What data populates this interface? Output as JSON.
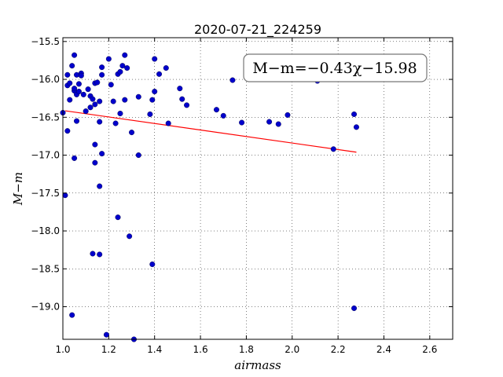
{
  "chart_data": {
    "type": "scatter",
    "title": "2020-07-21_224259",
    "xlabel": "airmass",
    "ylabel": "M−m",
    "xlim": [
      1.0,
      2.7
    ],
    "ylim": [
      -15.45,
      -19.43
    ],
    "y_inverted": true,
    "grid": true,
    "xticks": [
      "1.0",
      "1.2",
      "1.4",
      "1.6",
      "1.8",
      "2.0",
      "2.2",
      "2.4",
      "2.6"
    ],
    "yticks": [
      "−15.5",
      "−16.0",
      "−16.5",
      "−17.0",
      "−17.5",
      "−18.0",
      "−18.5",
      "−19.0"
    ],
    "annotation": "M−m=−0.43χ−15.98",
    "marker_color": "#0000cc",
    "line_color": "#ff0000",
    "fit": {
      "slope": -0.43,
      "intercept": -15.98,
      "x_range": [
        1.01,
        2.28
      ]
    },
    "points": [
      [
        1.0,
        -16.44
      ],
      [
        1.01,
        -17.53
      ],
      [
        1.02,
        -16.08
      ],
      [
        1.02,
        -15.94
      ],
      [
        1.02,
        -16.68
      ],
      [
        1.03,
        -16.05
      ],
      [
        1.03,
        -16.27
      ],
      [
        1.04,
        -15.82
      ],
      [
        1.05,
        -16.15
      ],
      [
        1.05,
        -16.12
      ],
      [
        1.05,
        -15.68
      ],
      [
        1.06,
        -15.94
      ],
      [
        1.06,
        -16.2
      ],
      [
        1.06,
        -16.55
      ],
      [
        1.07,
        -16.16
      ],
      [
        1.07,
        -16.06
      ],
      [
        1.08,
        -15.92
      ],
      [
        1.08,
        -15.95
      ],
      [
        1.09,
        -16.2
      ],
      [
        1.1,
        -16.42
      ],
      [
        1.11,
        -16.13
      ],
      [
        1.12,
        -16.22
      ],
      [
        1.12,
        -16.37
      ],
      [
        1.13,
        -16.26
      ],
      [
        1.14,
        -16.33
      ],
      [
        1.14,
        -16.05
      ],
      [
        1.15,
        -16.04
      ],
      [
        1.16,
        -16.56
      ],
      [
        1.16,
        -16.29
      ],
      [
        1.17,
        -15.94
      ],
      [
        1.17,
        -15.84
      ],
      [
        1.17,
        -16.98
      ],
      [
        1.14,
        -16.86
      ],
      [
        1.14,
        -17.1
      ],
      [
        1.16,
        -17.41
      ],
      [
        1.05,
        -17.04
      ],
      [
        1.13,
        -18.3
      ],
      [
        1.16,
        -18.31
      ],
      [
        1.04,
        -19.11
      ],
      [
        1.19,
        -19.37
      ],
      [
        1.2,
        -15.73
      ],
      [
        1.21,
        -16.07
      ],
      [
        1.22,
        -16.29
      ],
      [
        1.23,
        -16.58
      ],
      [
        1.24,
        -15.93
      ],
      [
        1.25,
        -15.9
      ],
      [
        1.25,
        -16.45
      ],
      [
        1.26,
        -15.82
      ],
      [
        1.27,
        -15.68
      ],
      [
        1.27,
        -16.27
      ],
      [
        1.28,
        -15.85
      ],
      [
        1.29,
        -18.07
      ],
      [
        1.3,
        -16.7
      ],
      [
        1.31,
        -19.43
      ],
      [
        1.33,
        -16.23
      ],
      [
        1.33,
        -17.0
      ],
      [
        1.24,
        -17.82
      ],
      [
        1.38,
        -16.46
      ],
      [
        1.39,
        -16.27
      ],
      [
        1.39,
        -18.44
      ],
      [
        1.4,
        -15.73
      ],
      [
        1.4,
        -16.16
      ],
      [
        1.42,
        -15.93
      ],
      [
        1.45,
        -15.85
      ],
      [
        1.46,
        -16.58
      ],
      [
        1.51,
        -16.12
      ],
      [
        1.52,
        -16.26
      ],
      [
        1.54,
        -16.34
      ],
      [
        1.67,
        -16.4
      ],
      [
        1.7,
        -16.48
      ],
      [
        1.74,
        -16.01
      ],
      [
        1.78,
        -16.57
      ],
      [
        1.9,
        -16.56
      ],
      [
        1.94,
        -16.59
      ],
      [
        1.98,
        -16.47
      ],
      [
        2.11,
        -16.02
      ],
      [
        2.18,
        -16.92
      ],
      [
        2.27,
        -16.46
      ],
      [
        2.28,
        -16.63
      ],
      [
        2.27,
        -19.02
      ]
    ]
  }
}
